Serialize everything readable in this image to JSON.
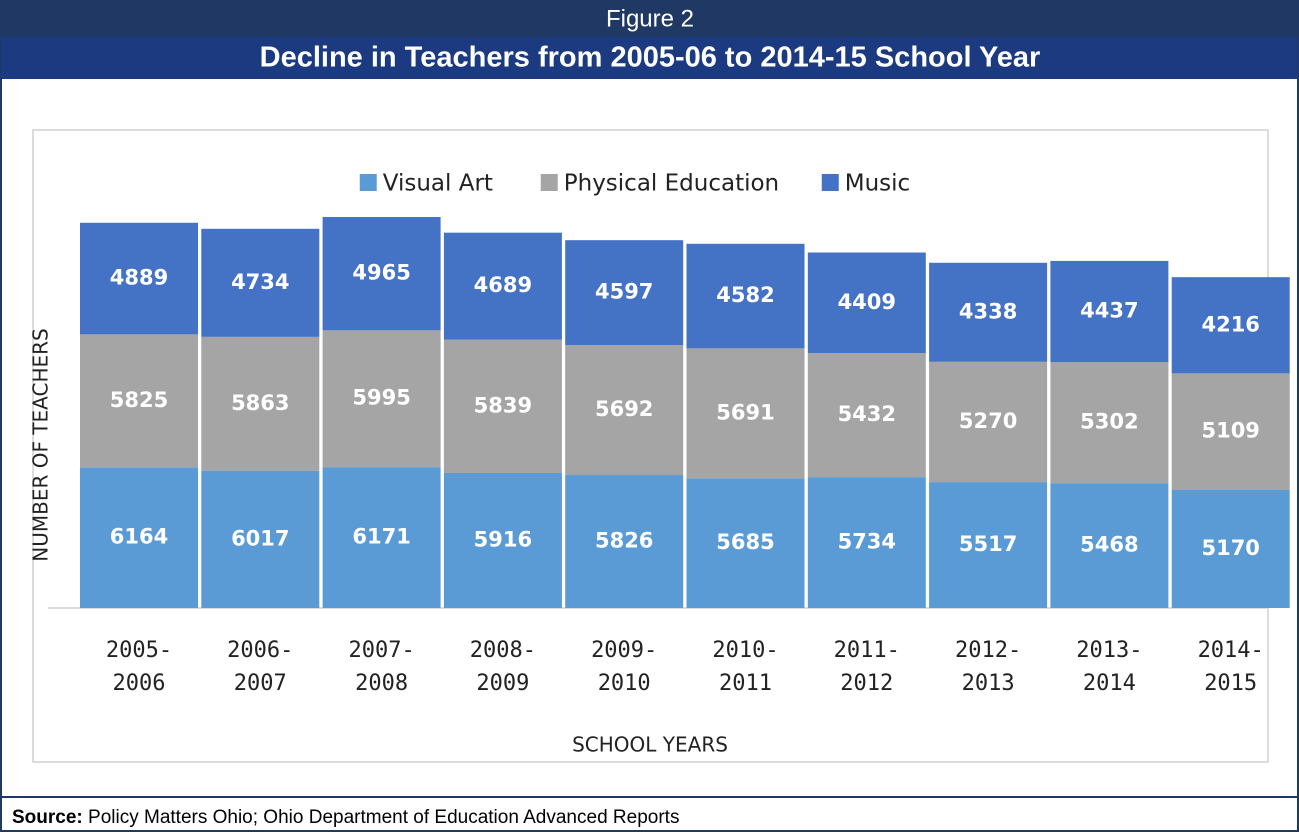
{
  "chart_data": {
    "type": "stacked_bar",
    "figure_label": "Figure 2",
    "title": "Decline in Teachers from 2005-06 to 2014-15 School Year",
    "xlabel": "SCHOOL YEARS",
    "ylabel": "NUMBER OF TEACHERS",
    "source_label": "Source:",
    "source": "Policy Matters Ohio; Ohio Department of Education Advanced Reports",
    "categories": [
      "2005-2006",
      "2006-2007",
      "2007-2008",
      "2008-2009",
      "2009-2010",
      "2010-2011",
      "2011-2012",
      "2012-2013",
      "2013-2014",
      "2014-2015"
    ],
    "series": [
      {
        "name": "Visual Art",
        "color": "#5b9bd5",
        "values": [
          6164,
          6017,
          6171,
          5916,
          5826,
          5685,
          5734,
          5517,
          5468,
          5170
        ]
      },
      {
        "name": "Physical Education",
        "color": "#a5a5a5",
        "values": [
          5825,
          5863,
          5995,
          5839,
          5692,
          5691,
          5432,
          5270,
          5302,
          5109
        ]
      },
      {
        "name": "Music",
        "color": "#4472c4",
        "values": [
          4889,
          4734,
          4965,
          4689,
          4597,
          4582,
          4409,
          4338,
          4437,
          4216
        ]
      }
    ],
    "legend": "top",
    "show_values": true
  }
}
